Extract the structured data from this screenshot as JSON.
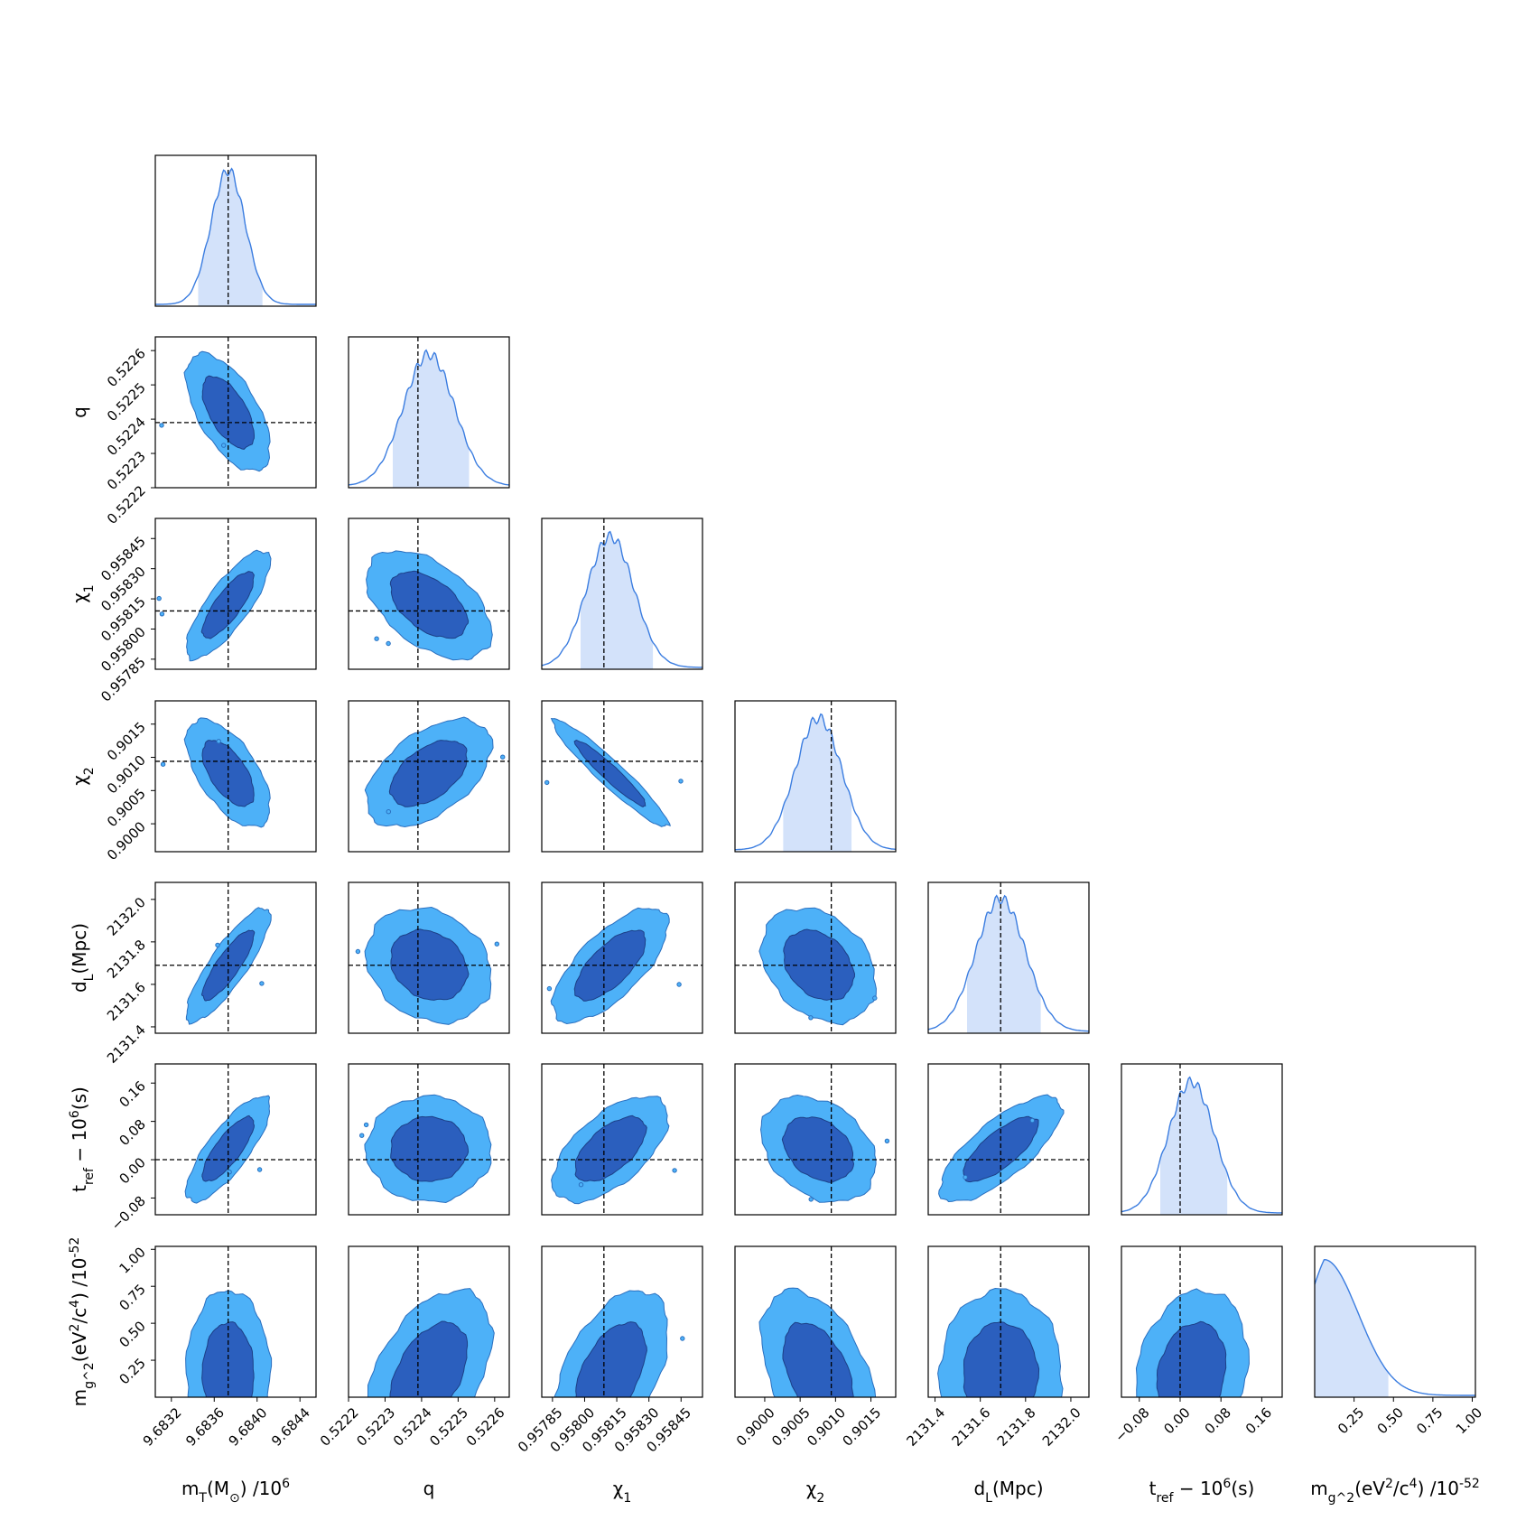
{
  "chart_data": {
    "type": "corner",
    "parameters": [
      {
        "key": "mT",
        "label": "m_T(M_⊙) /10^6",
        "ticks": [
          9.6832,
          9.6836,
          9.684,
          9.6844
        ],
        "tick_labels": [
          "9.6832",
          "9.6836",
          "9.6840",
          "9.6844"
        ],
        "range": [
          9.68305,
          9.68455
        ],
        "truth": 9.68373,
        "median": 9.68373,
        "sigma": 0.00016,
        "ci": [
          9.68345,
          9.68405
        ]
      },
      {
        "key": "q",
        "label": "q",
        "ticks": [
          0.5222,
          0.5223,
          0.5224,
          0.5225,
          0.5226
        ],
        "tick_labels": [
          "0.5222",
          "0.5223",
          "0.5224",
          "0.5225",
          "0.5226"
        ],
        "range": [
          0.5222,
          0.52264
        ],
        "truth": 0.52239,
        "median": 0.52242,
        "sigma": 7e-05,
        "ci": [
          0.52232,
          0.52253
        ]
      },
      {
        "key": "chi1",
        "label": "χ_1",
        "ticks": [
          0.95785,
          0.958,
          0.95815,
          0.9583,
          0.95845
        ],
        "tick_labels": [
          "0.95785",
          "0.95800",
          "0.95815",
          "0.95830",
          "0.95845"
        ],
        "range": [
          0.9578,
          0.95855
        ],
        "truth": 0.95809,
        "median": 0.95812,
        "sigma": 0.00011,
        "ci": [
          0.95798,
          0.95832
        ]
      },
      {
        "key": "chi2",
        "label": "χ_2",
        "ticks": [
          0.9,
          0.9005,
          0.901,
          0.9015
        ],
        "tick_labels": [
          "0.9000",
          "0.9005",
          "0.9010",
          "0.9015"
        ],
        "range": [
          0.89958,
          0.90185
        ],
        "truth": 0.90094,
        "median": 0.90076,
        "sigma": 0.00033,
        "ci": [
          0.90026,
          0.90123
        ]
      },
      {
        "key": "dL",
        "label": "d_L(Mpc)",
        "ticks": [
          2131.4,
          2131.6,
          2131.8,
          2132.0
        ],
        "tick_labels": [
          "2131.4",
          "2131.6",
          "2131.8",
          "2132.0"
        ],
        "range": [
          2131.37,
          2132.08
        ],
        "truth": 2131.69,
        "median": 2131.69,
        "sigma": 0.11,
        "ci": [
          2131.54,
          2131.87
        ]
      },
      {
        "key": "tref",
        "label": "t_ref − 10^6(s)",
        "ticks": [
          -0.08,
          0.0,
          0.08,
          0.16
        ],
        "tick_labels": [
          "−0.08",
          "0.00",
          "0.08",
          "0.16"
        ],
        "range": [
          -0.115,
          0.2
        ],
        "truth": 0.0,
        "median": 0.022,
        "sigma": 0.045,
        "ci": [
          -0.04,
          0.094
        ]
      },
      {
        "key": "mg2",
        "label": "m_g^2(eV^2/c^4) /10^-52",
        "ticks": [
          0.25,
          0.5,
          0.75,
          1.0
        ],
        "tick_labels": [
          "0.25",
          "0.50",
          "0.75",
          "1.00"
        ],
        "range": [
          0.0,
          1.02
        ],
        "truth": null,
        "median": 0.2,
        "sigma": 0.2,
        "ci": [
          0.0,
          0.47
        ]
      }
    ],
    "y_tick_labels_shown_on": [
      "q",
      "chi1",
      "chi2",
      "dL",
      "tref",
      "mg2"
    ],
    "correlations": {
      "q-mT": -0.6,
      "chi1-mT": 0.8,
      "chi1-q": -0.5,
      "chi2-mT": -0.6,
      "chi2-q": 0.5,
      "chi2-chi1": -0.95,
      "dL-mT": 0.85,
      "dL-q": -0.2,
      "dL-chi1": 0.7,
      "dL-chi2": -0.3,
      "tref-mT": 0.8,
      "tref-q": 0.0,
      "tref-chi1": 0.6,
      "tref-chi2": -0.3,
      "tref-dL": 0.75,
      "mg2-mT": 0.0,
      "mg2-q": 0.45,
      "mg2-chi1": 0.5,
      "mg2-chi2": -0.45,
      "mg2-dL": 0.0,
      "mg2-tref": 0.2
    },
    "contour_levels": [
      "68%",
      "95%"
    ],
    "colors": {
      "contour_95": "#4db1f8",
      "contour_68": "#2b5fbe",
      "kde_line": "#3b7de0",
      "kde_fill": "#d3e2fa",
      "truth_line": "#000000"
    }
  }
}
